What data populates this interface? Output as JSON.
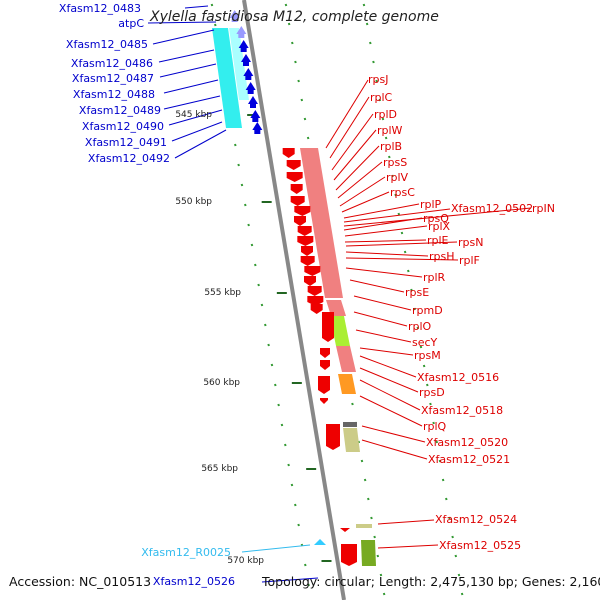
{
  "title": "Xylella fastidiosa M12, complete genome",
  "footer": {
    "accession": "Accession: NC_010513",
    "topology": "Topology: circular; Length: 2,475,130 bp; Genes: 2,160"
  },
  "scale_labels": [
    "545 kbp",
    "550 kbp",
    "555 kbp",
    "560 kbp",
    "565 kbp",
    "570 kbp"
  ],
  "left_genes": [
    "Xfasm12_0483",
    "atpC",
    "Xfasm12_0485",
    "Xfasm12_0486",
    "Xfasm12_0487",
    "Xfasm12_0488",
    "Xfasm12_0489",
    "Xfasm12_0490",
    "Xfasm12_0491",
    "Xfasm12_0492"
  ],
  "rna_gene": "Xfasm12_R0025",
  "bottom_left_gene": "Xfasm12_0526",
  "right_genes": [
    "rpsJ",
    "rplC",
    "rplD",
    "rplW",
    "rplB",
    "rpsS",
    "rplV",
    "rpsC",
    "rplP",
    "Xfasm12_0502",
    "rpIN",
    "rpsQ",
    "rplX",
    "rplE",
    "rpsN",
    "rpsH",
    "rplF",
    "rplR",
    "rpsE",
    "rpmD",
    "rplO",
    "secY",
    "rpsM",
    "Xfasm12_0516",
    "rpsD",
    "Xfasm12_0518",
    "rplQ",
    "Xfasm12_0520",
    "Xfasm12_0521",
    "Xfasm12_0524",
    "Xfasm12_0525"
  ],
  "colors": {
    "left_gene_text": "#0000cc",
    "right_gene_text": "#dd0000",
    "rna_text": "#33bbee",
    "backbone": "#888888",
    "tick": "#339933",
    "cds_reverse": "#ee0000",
    "cds_forward": "#0000dd",
    "cog_cyan": "#33eeee",
    "cog_salmon": "#f08080",
    "cog_green": "#aaee33",
    "cog_orange": "#ff9922",
    "cog_khaki": "#cccc88"
  }
}
